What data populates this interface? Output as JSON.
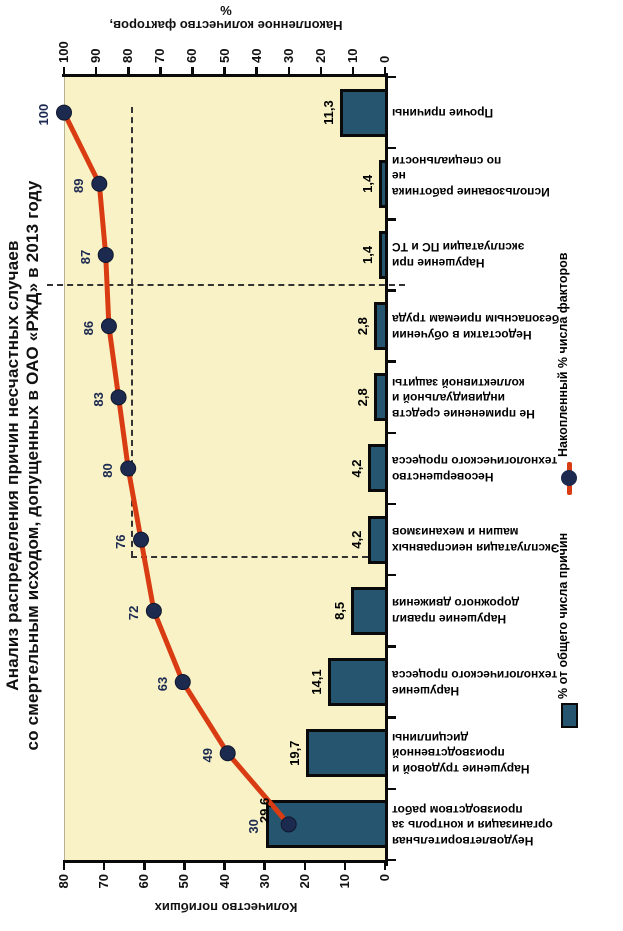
{
  "chart": {
    "title_line1": "Анализ распределения причин несчастных случаев",
    "title_line2": "со смертельным исходом, допущенных в ОАО «РЖД» в  2013 году"
  },
  "axes": {
    "left_title": "Количество погибших",
    "right_title": "Накопленное количество факторов, %"
  },
  "legend": {
    "bars_label": "% от общего числа причин",
    "line_label": "Накопленный % числа факторов"
  },
  "colors": {
    "plot_background": "#f8f2c6",
    "bar_fill": "#26566f",
    "bar_border": "#0a0a0a",
    "line_red": "#d93c12",
    "marker_navy": "#1b2a4e",
    "dashed": "#333333"
  },
  "chart_data": {
    "type": "pareto (bar + cumulative line)",
    "title": "Анализ распределения причин несчастных случаев со смертельным исходом, допущенных в ОАО «РЖД» в 2013 году",
    "categories": [
      "Неудовлетворительная\nорганизация и контроль за\nпроизводством работ",
      "Нарушение трудовой и\nпроизводственной\nдисциплины",
      "Нарушение\nтехнологического процесса",
      "Нарушение правил\nдорожного движения",
      "Эксплуатация неисправных\nмашин и механизмов",
      "Несовершенство\nтехнологического процесса",
      "Не применение средств\nиндивидуальной и\nколлективной защиты",
      "Недостатки в обучении\nбезопасным приемам труда",
      "Нарушение при\nэксплуатации ПС и ТС",
      "Использование работника не\nпо специальности",
      "Прочие причины"
    ],
    "series": [
      {
        "name": "% от общего числа причин",
        "type": "bar",
        "axis": "left",
        "values": [
          29.6,
          19.7,
          14.1,
          8.5,
          4.2,
          4.2,
          2.8,
          2.8,
          1.4,
          1.4,
          11.3
        ],
        "value_labels": [
          "29,6",
          "19,7",
          "14,1",
          "8,5",
          "4,2",
          "4,2",
          "2,8",
          "2,8",
          "1,4",
          "1,4",
          "11,3"
        ]
      },
      {
        "name": "Накопленный % числа факторов",
        "type": "line",
        "axis": "right",
        "values": [
          30,
          49,
          63,
          72,
          76,
          80,
          83,
          86,
          87,
          89,
          100
        ],
        "value_labels": [
          "30",
          "49",
          "63",
          "72",
          "76",
          "80",
          "83",
          "86",
          "87",
          "89",
          "100"
        ]
      }
    ],
    "left_axis": {
      "title": "Количество погибших",
      "min": 0,
      "max": 80,
      "step": 10
    },
    "right_axis": {
      "title": "Накопленное количество факторов, %",
      "min": 0,
      "max": 100,
      "step": 10
    },
    "grid": false,
    "legend_position": "bottom",
    "annotations": [
      "dashed 80% cumulative reference line with drop to category axis",
      "dashed vital-few separator line after 8th category"
    ],
    "orientation": "chart rotated 90° counter-clockwise on portrait page"
  }
}
